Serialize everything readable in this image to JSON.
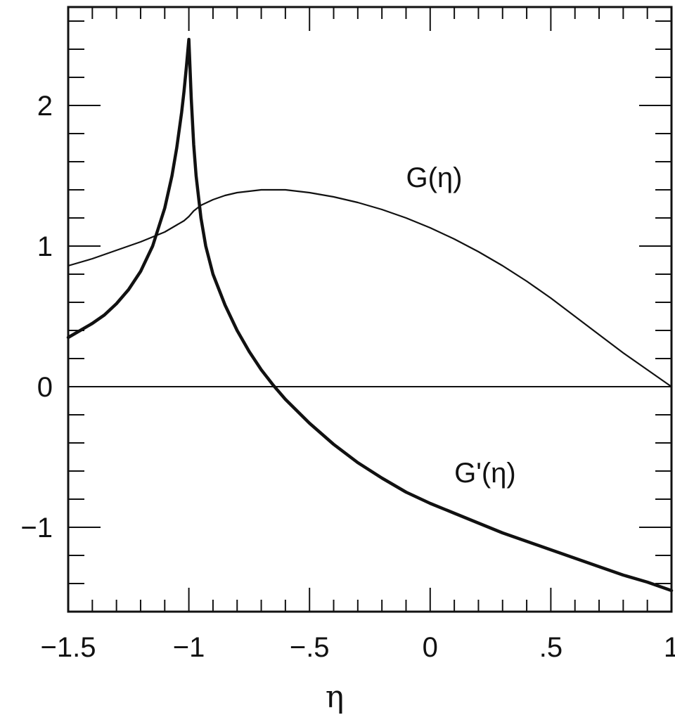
{
  "chart_data": {
    "type": "line",
    "title": "",
    "xlabel": "η",
    "ylabel": "",
    "xlim": [
      -1.5,
      1
    ],
    "ylim": [
      -1.6,
      2.7
    ],
    "grid": false,
    "legend": "none",
    "x_ticks": [
      {
        "value": -1.5,
        "label": "−1.5"
      },
      {
        "value": -1,
        "label": "−1"
      },
      {
        "value": -0.5,
        "label": "−.5"
      },
      {
        "value": 0,
        "label": "0"
      },
      {
        "value": 0.5,
        "label": ".5"
      },
      {
        "value": 1,
        "label": "1"
      }
    ],
    "y_ticks": [
      {
        "value": -1,
        "label": "−1"
      },
      {
        "value": 0,
        "label": "0"
      },
      {
        "value": 1,
        "label": "1"
      },
      {
        "value": 2,
        "label": "2"
      }
    ],
    "x_minor_step": 0.1,
    "y_minor_step": 0.2,
    "reference_lines": [
      {
        "axis": "y",
        "value": 0
      }
    ],
    "series": [
      {
        "name": "G(η)",
        "label_anchor": {
          "x": -0.1,
          "y": 1.42
        },
        "line_width": "thin",
        "x": [
          -1.5,
          -1.4,
          -1.3,
          -1.2,
          -1.1,
          -1.05,
          -1.02,
          -1.0,
          -0.98,
          -0.95,
          -0.9,
          -0.85,
          -0.8,
          -0.75,
          -0.7,
          -0.65,
          -0.6,
          -0.5,
          -0.4,
          -0.3,
          -0.2,
          -0.1,
          0.0,
          0.1,
          0.2,
          0.3,
          0.4,
          0.5,
          0.6,
          0.7,
          0.8,
          0.9,
          1.0
        ],
        "values": [
          0.86,
          0.91,
          0.97,
          1.03,
          1.1,
          1.15,
          1.18,
          1.21,
          1.25,
          1.29,
          1.33,
          1.36,
          1.38,
          1.39,
          1.4,
          1.4,
          1.4,
          1.38,
          1.35,
          1.31,
          1.26,
          1.2,
          1.13,
          1.05,
          0.96,
          0.86,
          0.75,
          0.63,
          0.5,
          0.37,
          0.24,
          0.12,
          0.0
        ]
      },
      {
        "name": "G'(η)",
        "label_anchor": {
          "x": 0.1,
          "y": -0.68
        },
        "line_width": "thick",
        "x": [
          -1.5,
          -1.45,
          -1.4,
          -1.35,
          -1.3,
          -1.25,
          -1.2,
          -1.15,
          -1.1,
          -1.07,
          -1.05,
          -1.03,
          -1.02,
          -1.01,
          -1.0,
          -0.99,
          -0.98,
          -0.97,
          -0.95,
          -0.93,
          -0.9,
          -0.85,
          -0.8,
          -0.75,
          -0.7,
          -0.65,
          -0.6,
          -0.5,
          -0.4,
          -0.3,
          -0.2,
          -0.1,
          0.0,
          0.1,
          0.2,
          0.3,
          0.4,
          0.5,
          0.6,
          0.7,
          0.8,
          0.9,
          1.0
        ],
        "values": [
          0.35,
          0.4,
          0.45,
          0.51,
          0.59,
          0.69,
          0.82,
          1.0,
          1.27,
          1.5,
          1.7,
          1.95,
          2.1,
          2.28,
          2.47,
          2.05,
          1.72,
          1.5,
          1.2,
          1.0,
          0.8,
          0.58,
          0.4,
          0.25,
          0.12,
          0.01,
          -0.09,
          -0.26,
          -0.41,
          -0.54,
          -0.65,
          -0.75,
          -0.83,
          -0.9,
          -0.97,
          -1.04,
          -1.1,
          -1.16,
          -1.22,
          -1.28,
          -1.34,
          -1.39,
          -1.45
        ]
      }
    ]
  }
}
